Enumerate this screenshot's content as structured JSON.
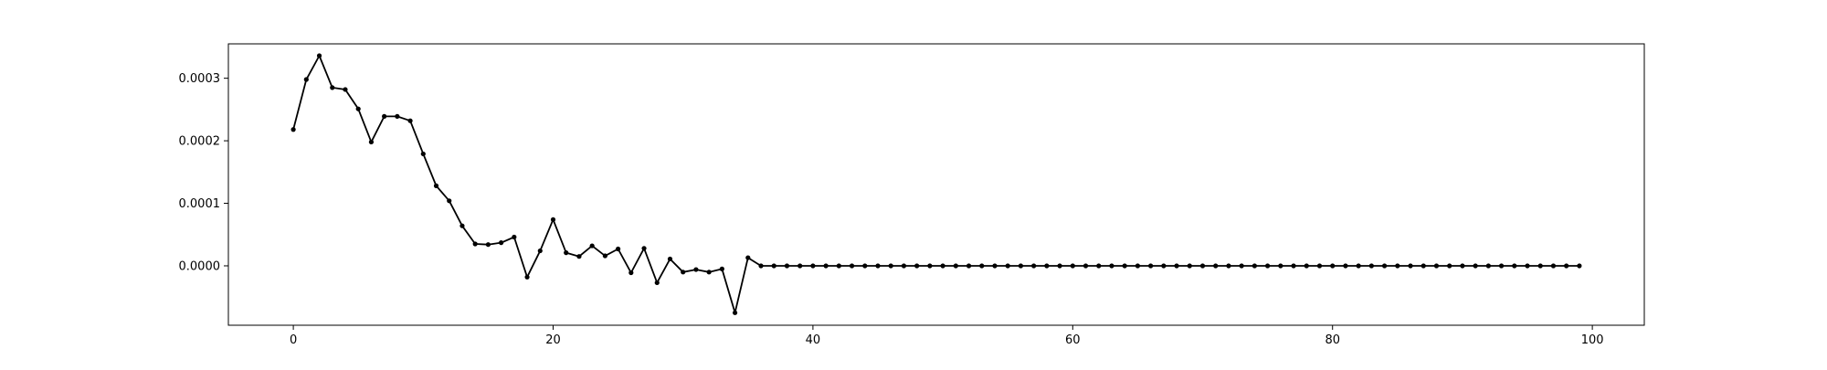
{
  "chart_data": {
    "type": "line",
    "title": "",
    "xlabel": "",
    "ylabel": "",
    "xlim": [
      -5,
      104
    ],
    "ylim": [
      -9.5e-05,
      0.000355
    ],
    "x_ticks": [
      0,
      20,
      40,
      60,
      80,
      100
    ],
    "x_tick_labels": [
      "0",
      "20",
      "40",
      "60",
      "80",
      "100"
    ],
    "y_ticks": [
      0.0,
      0.0001,
      0.0002,
      0.0003
    ],
    "y_tick_labels": [
      "0.0000",
      "0.0001",
      "0.0002",
      "0.0003"
    ],
    "grid": false,
    "legend": "none",
    "series": [
      {
        "color": "#000000",
        "marker": "dot",
        "x": [
          0,
          1,
          2,
          3,
          4,
          5,
          6,
          7,
          8,
          9,
          10,
          11,
          12,
          13,
          14,
          15,
          16,
          17,
          18,
          19,
          20,
          21,
          22,
          23,
          24,
          25,
          26,
          27,
          28,
          29,
          30,
          31,
          32,
          33,
          34,
          35,
          36,
          37,
          38,
          39,
          40,
          41,
          42,
          43,
          44,
          45,
          46,
          47,
          48,
          49,
          50,
          51,
          52,
          53,
          54,
          55,
          56,
          57,
          58,
          59,
          60,
          61,
          62,
          63,
          64,
          65,
          66,
          67,
          68,
          69,
          70,
          71,
          72,
          73,
          74,
          75,
          76,
          77,
          78,
          79,
          80,
          81,
          82,
          83,
          84,
          85,
          86,
          87,
          88,
          89,
          90,
          91,
          92,
          93,
          94,
          95,
          96,
          97,
          98,
          99
        ],
        "y": [
          0.000218,
          0.000298,
          0.000336,
          0.000285,
          0.000282,
          0.000251,
          0.000198,
          0.000239,
          0.000239,
          0.000232,
          0.000179,
          0.000128,
          0.000104,
          6.4e-05,
          3.5e-05,
          3.4e-05,
          3.7e-05,
          4.6e-05,
          -1.8e-05,
          2.4e-05,
          7.4e-05,
          2.1e-05,
          1.5e-05,
          3.2e-05,
          1.6e-05,
          2.7e-05,
          -1.1e-05,
          2.8e-05,
          -2.7e-05,
          1.1e-05,
          -1e-05,
          -6e-06,
          -1e-05,
          -5e-06,
          -7.5e-05,
          1.3e-05,
          0.0,
          0.0,
          0.0,
          0.0,
          0.0,
          0.0,
          0.0,
          0.0,
          0.0,
          0.0,
          0.0,
          0.0,
          0.0,
          0.0,
          0.0,
          0.0,
          0.0,
          0.0,
          0.0,
          0.0,
          0.0,
          0.0,
          0.0,
          0.0,
          0.0,
          0.0,
          0.0,
          0.0,
          0.0,
          0.0,
          0.0,
          0.0,
          0.0,
          0.0,
          0.0,
          0.0,
          0.0,
          0.0,
          0.0,
          0.0,
          0.0,
          0.0,
          0.0,
          0.0,
          0.0,
          0.0,
          0.0,
          0.0,
          0.0,
          0.0,
          0.0,
          0.0,
          0.0,
          0.0,
          0.0,
          0.0,
          0.0,
          0.0,
          0.0,
          0.0,
          0.0,
          0.0,
          0.0,
          0.0
        ]
      }
    ]
  }
}
